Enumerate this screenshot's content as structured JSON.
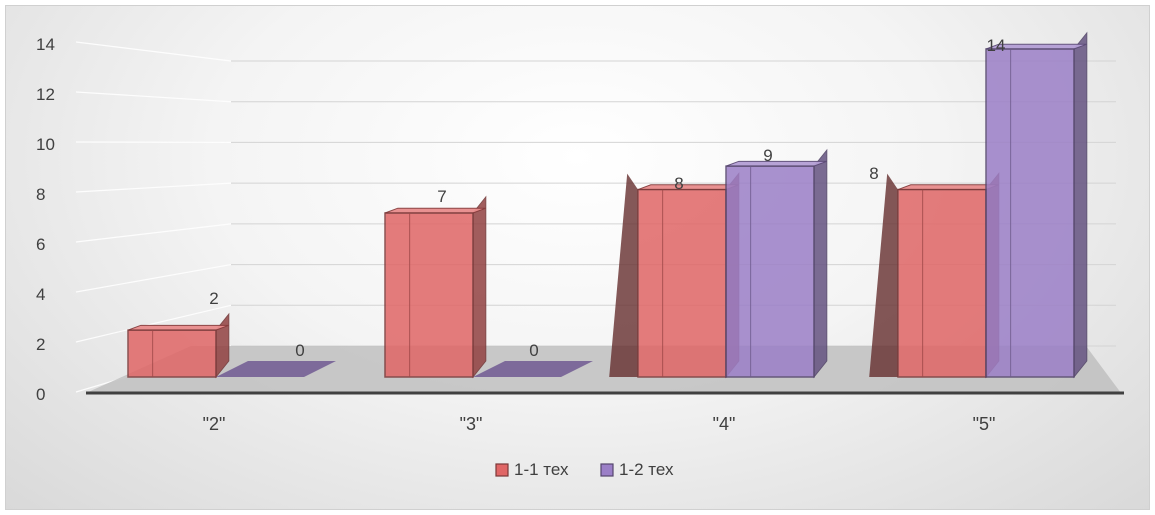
{
  "chart_data": {
    "type": "bar",
    "categories": [
      "\"2\"",
      "\"3\"",
      "\"4\"",
      "\"5\""
    ],
    "series": [
      {
        "name": "1-1 тех",
        "values": [
          2,
          7,
          8,
          8
        ],
        "color": "#e06666"
      },
      {
        "name": "1-2 тех",
        "values": [
          0,
          0,
          9,
          14
        ],
        "color": "#9b7fc7"
      }
    ],
    "ylim": [
      0,
      14
    ],
    "yticks": [
      0,
      2,
      4,
      6,
      8,
      10,
      12,
      14
    ],
    "grid": true,
    "legend": "bottom",
    "style": "3d-clustered"
  }
}
